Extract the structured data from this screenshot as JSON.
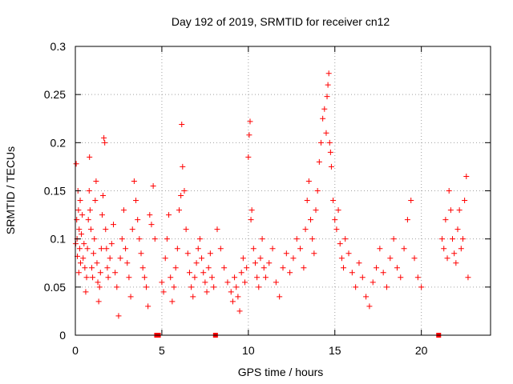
{
  "chart_data": {
    "type": "scatter",
    "title": "Day 192 of 2019, SRMTID for receiver cn12",
    "xlabel": "GPS time / hours",
    "ylabel": "SRMTID / TECUs",
    "xlim": [
      0,
      24
    ],
    "ylim": [
      0,
      0.3
    ],
    "grid": true,
    "marker": "+",
    "series_color": "#ff0000",
    "x_ticks": [
      {
        "value": 0,
        "label": "0"
      },
      {
        "value": 5,
        "label": "5"
      },
      {
        "value": 10,
        "label": "10"
      },
      {
        "value": 15,
        "label": "15"
      },
      {
        "value": 20,
        "label": "20"
      }
    ],
    "y_ticks": [
      {
        "value": 0,
        "label": "0"
      },
      {
        "value": 0.05,
        "label": "0.05"
      },
      {
        "value": 0.1,
        "label": "0.1"
      },
      {
        "value": 0.15,
        "label": "0.15"
      },
      {
        "value": 0.2,
        "label": "0.2"
      },
      {
        "value": 0.25,
        "label": "0.25"
      },
      {
        "value": 0.3,
        "label": "0.3"
      }
    ],
    "zero_value_markers_x": [
      4.7,
      4.8,
      8.1,
      21.0
    ],
    "series": [
      {
        "name": "SRMTID",
        "points": [
          [
            0.02,
            0.095
          ],
          [
            0.05,
            0.178
          ],
          [
            0.08,
            0.12
          ],
          [
            0.1,
            0.1
          ],
          [
            0.12,
            0.082
          ],
          [
            0.15,
            0.15
          ],
          [
            0.18,
            0.13
          ],
          [
            0.2,
            0.065
          ],
          [
            0.22,
            0.11
          ],
          [
            0.25,
            0.09
          ],
          [
            0.28,
            0.14
          ],
          [
            0.3,
            0.075
          ],
          [
            0.35,
            0.105
          ],
          [
            0.4,
            0.125
          ],
          [
            0.45,
            0.08
          ],
          [
            0.5,
            0.095
          ],
          [
            0.55,
            0.07
          ],
          [
            0.6,
            0.045
          ],
          [
            0.65,
            0.06
          ],
          [
            0.7,
            0.09
          ],
          [
            0.75,
            0.12
          ],
          [
            0.8,
            0.15
          ],
          [
            0.82,
            0.185
          ],
          [
            0.85,
            0.13
          ],
          [
            0.9,
            0.11
          ],
          [
            0.95,
            0.07
          ],
          [
            1.0,
            0.06
          ],
          [
            1.05,
            0.085
          ],
          [
            1.1,
            0.1
          ],
          [
            1.15,
            0.14
          ],
          [
            1.2,
            0.16
          ],
          [
            1.25,
            0.075
          ],
          [
            1.3,
            0.055
          ],
          [
            1.35,
            0.035
          ],
          [
            1.4,
            0.05
          ],
          [
            1.45,
            0.065
          ],
          [
            1.5,
            0.09
          ],
          [
            1.55,
            0.125
          ],
          [
            1.6,
            0.145
          ],
          [
            1.65,
            0.205
          ],
          [
            1.7,
            0.2
          ],
          [
            1.75,
            0.11
          ],
          [
            1.8,
            0.09
          ],
          [
            1.85,
            0.07
          ],
          [
            1.9,
            0.06
          ],
          [
            2.0,
            0.08
          ],
          [
            2.1,
            0.095
          ],
          [
            2.2,
            0.115
          ],
          [
            2.3,
            0.065
          ],
          [
            2.4,
            0.05
          ],
          [
            2.5,
            0.02
          ],
          [
            2.6,
            0.08
          ],
          [
            2.7,
            0.1
          ],
          [
            2.8,
            0.13
          ],
          [
            2.9,
            0.09
          ],
          [
            3.0,
            0.075
          ],
          [
            3.1,
            0.06
          ],
          [
            3.2,
            0.04
          ],
          [
            3.3,
            0.11
          ],
          [
            3.4,
            0.16
          ],
          [
            3.5,
            0.14
          ],
          [
            3.6,
            0.12
          ],
          [
            3.7,
            0.1
          ],
          [
            3.8,
            0.085
          ],
          [
            3.9,
            0.07
          ],
          [
            4.0,
            0.06
          ],
          [
            4.1,
            0.05
          ],
          [
            4.2,
            0.03
          ],
          [
            4.3,
            0.125
          ],
          [
            4.4,
            0.115
          ],
          [
            4.5,
            0.155
          ],
          [
            4.6,
            0.1
          ],
          [
            5.0,
            0.055
          ],
          [
            5.1,
            0.045
          ],
          [
            5.2,
            0.08
          ],
          [
            5.3,
            0.1
          ],
          [
            5.4,
            0.125
          ],
          [
            5.5,
            0.06
          ],
          [
            5.6,
            0.035
          ],
          [
            5.7,
            0.05
          ],
          [
            5.8,
            0.07
          ],
          [
            5.9,
            0.09
          ],
          [
            6.0,
            0.13
          ],
          [
            6.1,
            0.145
          ],
          [
            6.15,
            0.219
          ],
          [
            6.2,
            0.175
          ],
          [
            6.3,
            0.15
          ],
          [
            6.4,
            0.11
          ],
          [
            6.5,
            0.085
          ],
          [
            6.6,
            0.065
          ],
          [
            6.7,
            0.05
          ],
          [
            6.8,
            0.04
          ],
          [
            6.9,
            0.06
          ],
          [
            7.0,
            0.075
          ],
          [
            7.1,
            0.09
          ],
          [
            7.2,
            0.1
          ],
          [
            7.3,
            0.08
          ],
          [
            7.4,
            0.065
          ],
          [
            7.5,
            0.055
          ],
          [
            7.6,
            0.045
          ],
          [
            7.7,
            0.07
          ],
          [
            7.8,
            0.085
          ],
          [
            7.9,
            0.06
          ],
          [
            8.0,
            0.05
          ],
          [
            8.2,
            0.11
          ],
          [
            8.4,
            0.09
          ],
          [
            8.6,
            0.07
          ],
          [
            8.8,
            0.055
          ],
          [
            9.0,
            0.045
          ],
          [
            9.1,
            0.035
          ],
          [
            9.2,
            0.06
          ],
          [
            9.3,
            0.05
          ],
          [
            9.4,
            0.04
          ],
          [
            9.5,
            0.025
          ],
          [
            9.6,
            0.065
          ],
          [
            9.7,
            0.08
          ],
          [
            9.8,
            0.055
          ],
          [
            9.9,
            0.07
          ],
          [
            10.0,
            0.185
          ],
          [
            10.05,
            0.208
          ],
          [
            10.1,
            0.222
          ],
          [
            10.15,
            0.12
          ],
          [
            10.2,
            0.13
          ],
          [
            10.3,
            0.09
          ],
          [
            10.4,
            0.075
          ],
          [
            10.5,
            0.06
          ],
          [
            10.6,
            0.05
          ],
          [
            10.7,
            0.08
          ],
          [
            10.8,
            0.1
          ],
          [
            10.9,
            0.07
          ],
          [
            11.0,
            0.06
          ],
          [
            11.2,
            0.075
          ],
          [
            11.4,
            0.09
          ],
          [
            11.6,
            0.055
          ],
          [
            11.8,
            0.04
          ],
          [
            12.0,
            0.07
          ],
          [
            12.2,
            0.085
          ],
          [
            12.4,
            0.065
          ],
          [
            12.6,
            0.08
          ],
          [
            12.8,
            0.1
          ],
          [
            13.0,
            0.09
          ],
          [
            13.2,
            0.07
          ],
          [
            13.3,
            0.11
          ],
          [
            13.4,
            0.14
          ],
          [
            13.5,
            0.16
          ],
          [
            13.6,
            0.12
          ],
          [
            13.7,
            0.1
          ],
          [
            13.8,
            0.085
          ],
          [
            13.9,
            0.13
          ],
          [
            14.0,
            0.15
          ],
          [
            14.1,
            0.18
          ],
          [
            14.2,
            0.2
          ],
          [
            14.3,
            0.225
          ],
          [
            14.4,
            0.235
          ],
          [
            14.5,
            0.21
          ],
          [
            14.55,
            0.248
          ],
          [
            14.6,
            0.26
          ],
          [
            14.65,
            0.272
          ],
          [
            14.7,
            0.2
          ],
          [
            14.75,
            0.19
          ],
          [
            14.8,
            0.175
          ],
          [
            14.9,
            0.14
          ],
          [
            15.0,
            0.12
          ],
          [
            15.1,
            0.11
          ],
          [
            15.2,
            0.13
          ],
          [
            15.3,
            0.095
          ],
          [
            15.4,
            0.08
          ],
          [
            15.5,
            0.07
          ],
          [
            15.6,
            0.1
          ],
          [
            15.8,
            0.085
          ],
          [
            16.0,
            0.065
          ],
          [
            16.2,
            0.05
          ],
          [
            16.4,
            0.075
          ],
          [
            16.6,
            0.06
          ],
          [
            16.8,
            0.04
          ],
          [
            17.0,
            0.03
          ],
          [
            17.2,
            0.055
          ],
          [
            17.4,
            0.07
          ],
          [
            17.6,
            0.09
          ],
          [
            17.8,
            0.065
          ],
          [
            18.0,
            0.05
          ],
          [
            18.2,
            0.08
          ],
          [
            18.4,
            0.1
          ],
          [
            18.6,
            0.07
          ],
          [
            18.8,
            0.06
          ],
          [
            19.0,
            0.09
          ],
          [
            19.2,
            0.12
          ],
          [
            19.4,
            0.14
          ],
          [
            19.6,
            0.08
          ],
          [
            19.8,
            0.06
          ],
          [
            20.0,
            0.05
          ],
          [
            21.2,
            0.1
          ],
          [
            21.3,
            0.09
          ],
          [
            21.4,
            0.12
          ],
          [
            21.5,
            0.08
          ],
          [
            21.6,
            0.15
          ],
          [
            21.7,
            0.13
          ],
          [
            21.8,
            0.1
          ],
          [
            21.9,
            0.085
          ],
          [
            22.0,
            0.075
          ],
          [
            22.1,
            0.11
          ],
          [
            22.2,
            0.13
          ],
          [
            22.3,
            0.09
          ],
          [
            22.4,
            0.1
          ],
          [
            22.5,
            0.14
          ],
          [
            22.6,
            0.165
          ],
          [
            22.7,
            0.06
          ]
        ]
      }
    ]
  }
}
